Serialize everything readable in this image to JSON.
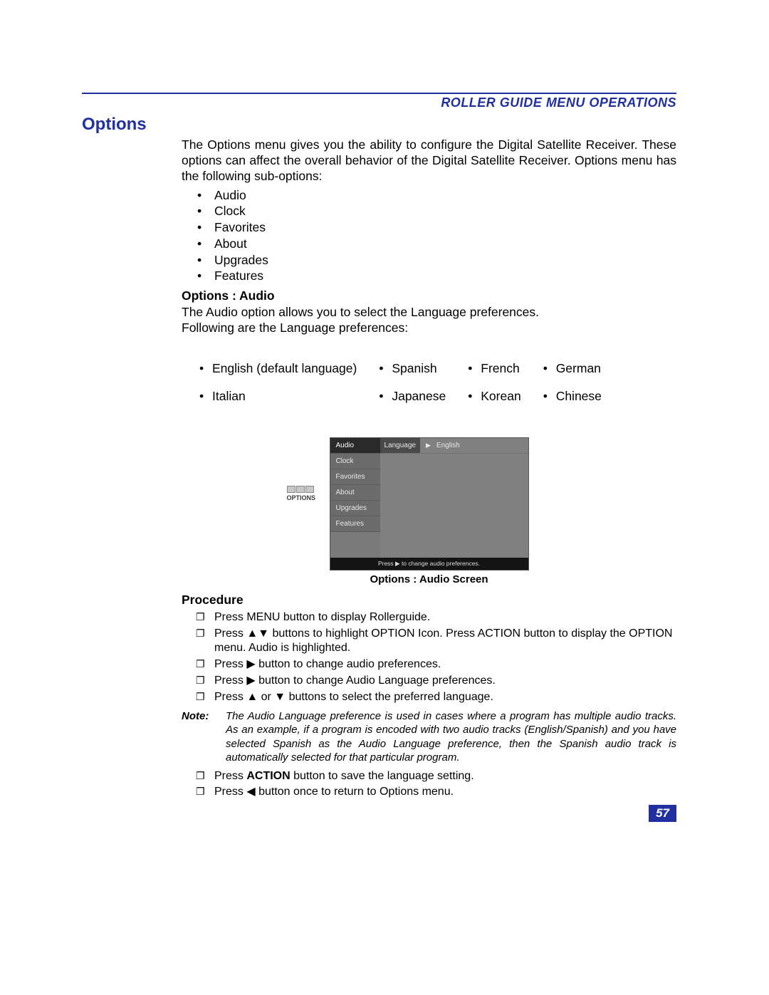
{
  "colors": {
    "accent": "#2030a0",
    "text": "#000000",
    "page_bg": "#ffffff",
    "screen_bg": "#7a7a7a",
    "screen_menu_bg": "#6b6b6b",
    "screen_menu_sel_bg": "#2a2a2a",
    "screen_right_bg": "#808080",
    "screen_footer_bg": "#141414"
  },
  "header": {
    "running_head": "ROLLER GUIDE MENU OPERATIONS"
  },
  "title": "Options",
  "intro": "The Options menu gives you the ability to configure the Digital Satellite Receiver. These options can affect the overall behavior of the Digital Satellite Receiver. Options menu has the following sub-options:",
  "sub_options": [
    "Audio",
    "Clock",
    "Favorites",
    "About",
    "Upgrades",
    "Features"
  ],
  "audio": {
    "heading": "Options : Audio",
    "line1": "The Audio option allows you to select the Language preferences.",
    "line2": "Following are the Language preferences:",
    "languages_row1": [
      "English (default language)",
      "Spanish",
      "French",
      "German"
    ],
    "languages_row2": [
      "Italian",
      "Japanese",
      "Korean",
      "Chinese"
    ]
  },
  "figure": {
    "icon_label": "OPTIONS",
    "menu_items": [
      "Audio",
      "Clock",
      "Favorites",
      "About",
      "Upgrades",
      "Features"
    ],
    "selected_index": 0,
    "right_label": "Language",
    "right_value": "English",
    "footer_text": "Press ▶ to change audio preferences.",
    "caption": "Options : Audio Screen"
  },
  "procedure": {
    "heading": "Procedure",
    "steps_before_note": [
      "Press MENU button to display Rollerguide.",
      "Press ▲▼ buttons to highlight OPTION Icon. Press ACTION button to display the OPTION menu. Audio is highlighted.",
      "Press ▶ button to change audio preferences.",
      "Press ▶  button to change Audio Language preferences.",
      "Press ▲ or ▼ buttons to select the preferred language."
    ],
    "note_label": "Note:",
    "note_body": "The Audio Language preference is used in cases where a program has multiple audio tracks. As an example, if a program is encoded with two audio tracks (English/Spanish) and you have selected Spanish as the Audio Language preference, then the Spanish audio track is automatically selected for that particular program.",
    "steps_after_note": [
      "Press <b>ACTION</b> button to save the language setting.",
      "Press ◀ button once to return to Options menu."
    ]
  },
  "page_number": "57"
}
